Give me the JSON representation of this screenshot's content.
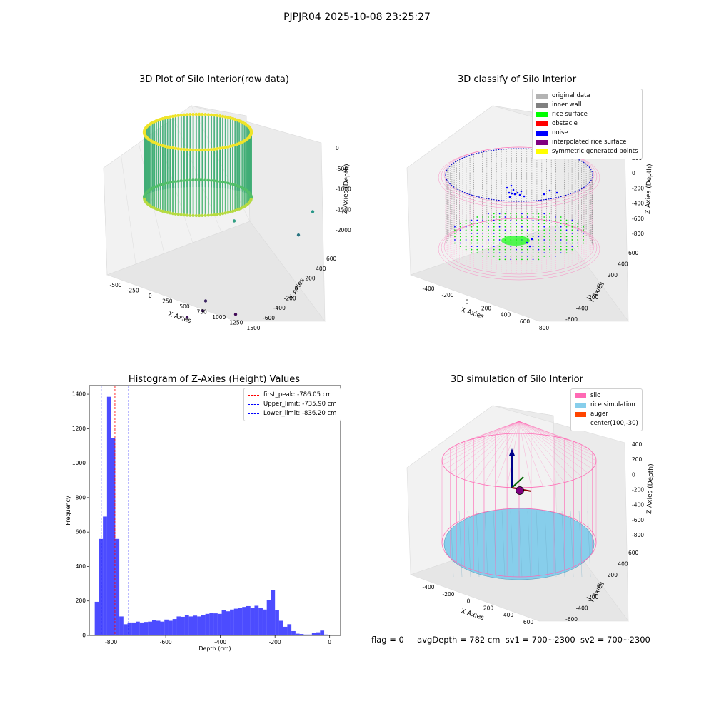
{
  "suptitle": "PJPJR04 2025-10-08 23:25:27",
  "status": {
    "flag": "flag = 0",
    "avg_depth": "avgDepth = 782 cm",
    "sv1": "sv1 = 700~2300",
    "sv2": "sv2 = 700~2300"
  },
  "chart_data": [
    {
      "type": "scatter",
      "title": "3D Plot of Silo Interior(row data)",
      "xlabel": "X Axies",
      "ylabel": "Y Axies",
      "zlabel": "Z Axies (Depth)",
      "x_ticks": [
        "-500",
        "-250",
        "0",
        "250",
        "500",
        "750",
        "1000",
        "1250",
        "1500"
      ],
      "y_ticks": [
        "-600",
        "-400",
        "-200",
        "0",
        "200",
        "400",
        "600"
      ],
      "z_ticks": [
        "0",
        "-500",
        "-1000",
        "-1500",
        "-2000"
      ],
      "colormap": [
        "#440154",
        "#21918c",
        "#5ec962",
        "#fde725"
      ],
      "outlier_points": [
        {
          "x": 1200,
          "y": 300,
          "z": -1300
        },
        {
          "x": 1150,
          "y": 200,
          "z": -1550
        },
        {
          "x": 700,
          "y": 50,
          "z": -1200
        },
        {
          "x": 750,
          "y": -350,
          "z": -2000
        },
        {
          "x": 800,
          "y": -450,
          "z": -2050
        },
        {
          "x": 700,
          "y": -500,
          "z": -2100
        },
        {
          "x": 1050,
          "y": -400,
          "z": -2150
        }
      ]
    },
    {
      "type": "scatter",
      "title": "3D classify of Silo Interior",
      "xlabel": "X Axies",
      "ylabel": "Y Axies",
      "zlabel": "Z Axies (Depth)",
      "x_ticks": [
        "-400",
        "-200",
        "0",
        "200",
        "400",
        "600",
        "800"
      ],
      "y_ticks": [
        "-600",
        "-400",
        "-200",
        "0",
        "200",
        "400",
        "600"
      ],
      "z_ticks": [
        "200",
        "0",
        "-200",
        "-400",
        "-600",
        "-800"
      ],
      "legend": [
        {
          "label": "original data",
          "color": "#b3b3b3"
        },
        {
          "label": "inner wall",
          "color": "#808080"
        },
        {
          "label": "rice surface",
          "color": "#00ff00"
        },
        {
          "label": "obstacle",
          "color": "#ff0000"
        },
        {
          "label": "noise",
          "color": "#0000ff"
        },
        {
          "label": "interpolated rice surface",
          "color": "#800080"
        },
        {
          "label": "symmetric generated points",
          "color": "#ffff00"
        }
      ]
    },
    {
      "type": "bar",
      "title": "Histogram of Z-Axies (Height) Values",
      "xlabel": "Depth (cm)",
      "ylabel": "Frequency",
      "xlim": [
        -880,
        40
      ],
      "ylim": [
        0,
        1450
      ],
      "x_ticks": [
        -800,
        -600,
        -400,
        -200,
        0
      ],
      "y_ticks": [
        0,
        200,
        400,
        600,
        800,
        1000,
        1200,
        1400
      ],
      "bar_color": "#0000ff",
      "bin_edges": [
        -860,
        -845,
        -830,
        -815,
        -800,
        -785,
        -770,
        -755,
        -740,
        -725,
        -710,
        -695,
        -680,
        -665,
        -650,
        -635,
        -620,
        -605,
        -590,
        -575,
        -560,
        -545,
        -530,
        -515,
        -500,
        -485,
        -470,
        -455,
        -440,
        -425,
        -410,
        -395,
        -380,
        -365,
        -350,
        -335,
        -320,
        -305,
        -290,
        -275,
        -260,
        -245,
        -230,
        -215,
        -200,
        -185,
        -170,
        -155,
        -140,
        -125,
        -110,
        -95,
        -80,
        -65,
        -50,
        -35,
        -20,
        -5,
        10
      ],
      "counts": [
        195,
        560,
        690,
        1385,
        1145,
        560,
        110,
        65,
        75,
        75,
        80,
        75,
        78,
        80,
        90,
        85,
        80,
        92,
        85,
        95,
        110,
        108,
        120,
        110,
        115,
        110,
        120,
        125,
        132,
        128,
        125,
        145,
        140,
        150,
        155,
        160,
        165,
        170,
        160,
        172,
        160,
        150,
        205,
        265,
        145,
        85,
        50,
        65,
        25,
        10,
        8,
        5,
        5,
        15,
        18,
        28,
        5,
        2
      ],
      "lines": [
        {
          "label": "first_peak: -786.05 cm",
          "x": -786.05,
          "color": "#ff0000"
        },
        {
          "label": "Upper_limit: -735.90 cm",
          "x": -735.9,
          "color": "#0000ff"
        },
        {
          "label": "Lower_limit: -836.20 cm",
          "x": -836.2,
          "color": "#0000ff"
        }
      ]
    },
    {
      "type": "scatter",
      "title": "3D simulation of Silo Interior",
      "xlabel": "X Axies",
      "ylabel": "Y Axies",
      "zlabel": "Z Axies (Depth)",
      "x_ticks": [
        "-400",
        "-200",
        "0",
        "200",
        "400",
        "600"
      ],
      "y_ticks": [
        "-600",
        "-400",
        "-200",
        "0",
        "200",
        "400",
        "600"
      ],
      "z_ticks": [
        "400",
        "200",
        "0",
        "-200",
        "-400",
        "-600",
        "-800"
      ],
      "legend": [
        {
          "label": "silo",
          "color": "#ff69b4"
        },
        {
          "label": "rice simulation",
          "color": "#87ceeb"
        },
        {
          "label": "auger",
          "color": "#ff4500"
        },
        {
          "label": "center(100,-30)",
          "color": ""
        }
      ]
    }
  ]
}
